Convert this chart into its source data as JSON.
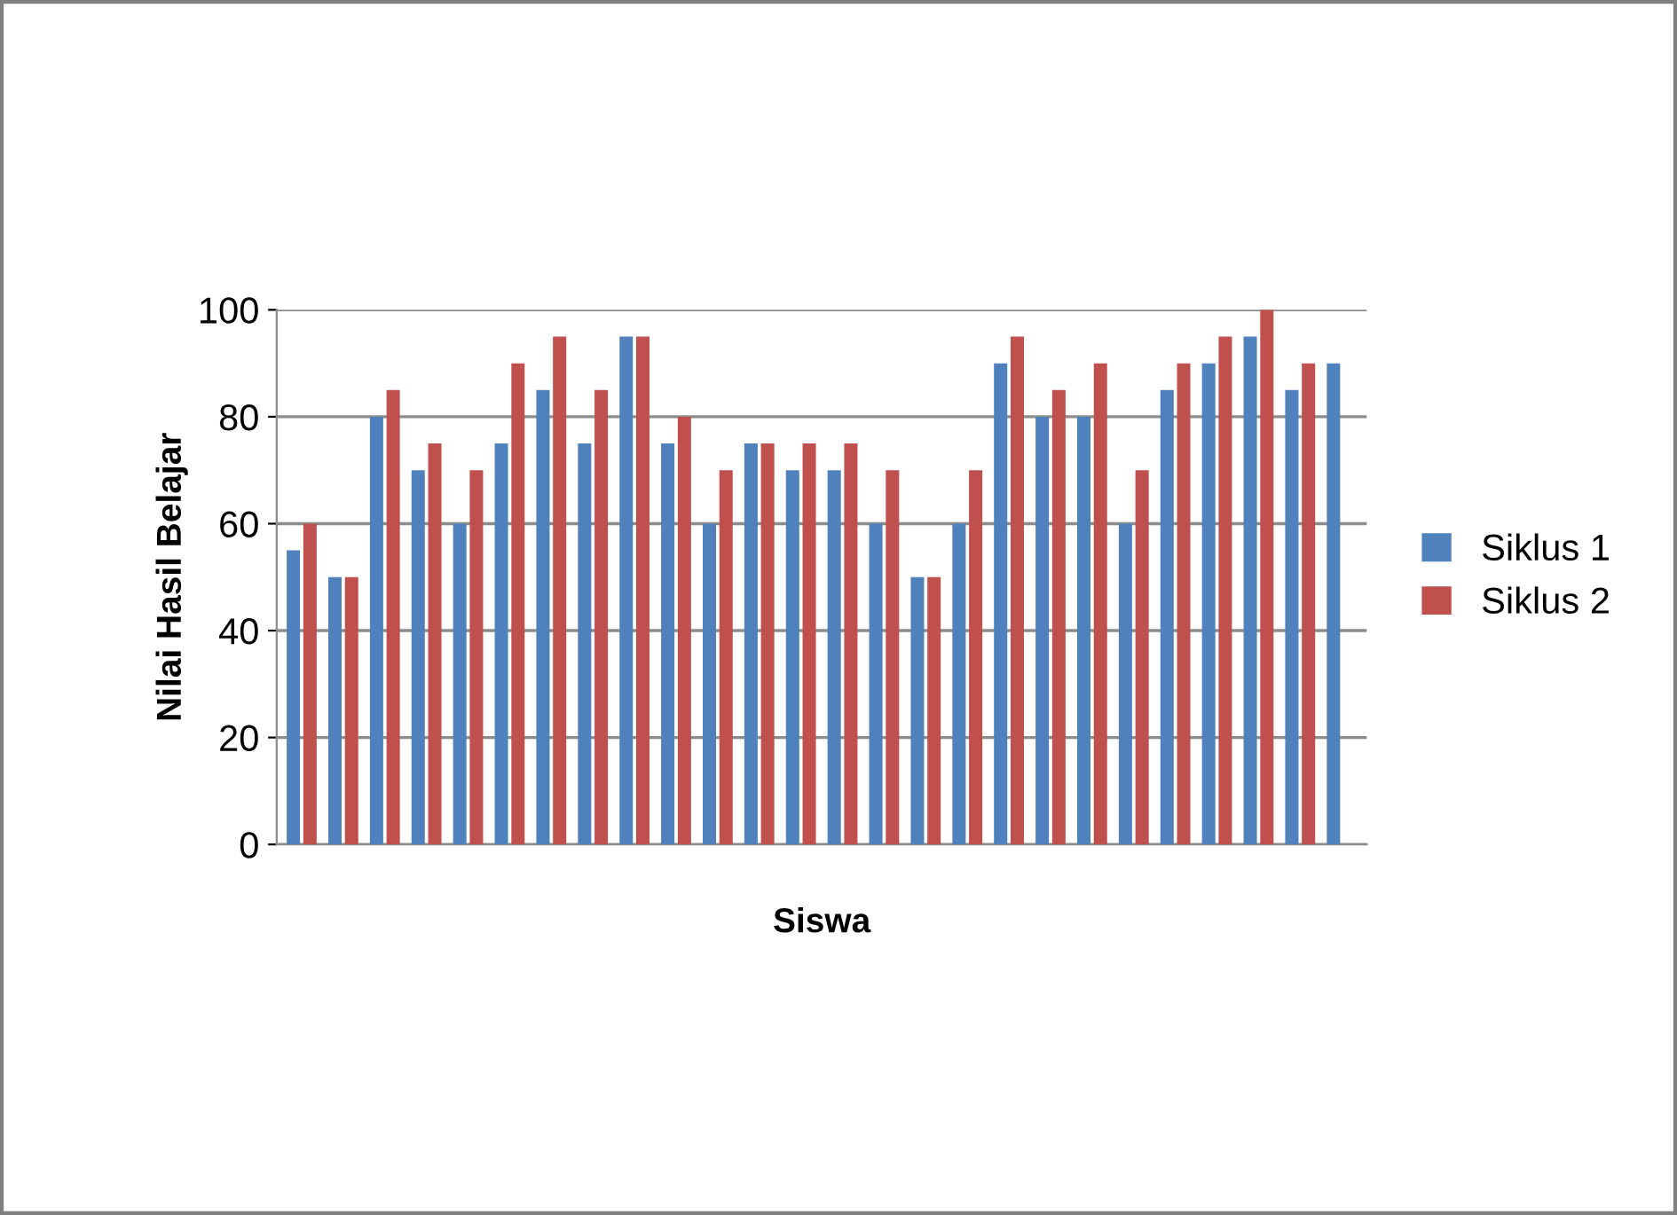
{
  "chart_data": {
    "type": "bar",
    "xlabel": "Siswa",
    "ylabel": "Nilai Hasil Belajar",
    "categories": [
      null,
      null,
      null,
      null,
      null,
      null,
      null,
      null,
      null,
      null,
      null,
      null,
      null,
      null,
      null,
      null,
      null,
      null,
      null,
      null,
      null,
      null,
      null,
      null,
      null,
      null
    ],
    "series": [
      {
        "name": "Siklus 1",
        "color": "#4f81bd",
        "values": [
          55,
          50,
          80,
          70,
          60,
          75,
          85,
          75,
          95,
          75,
          60,
          75,
          70,
          70,
          60,
          50,
          60,
          90,
          80,
          80,
          60,
          85,
          90,
          95,
          85,
          90
        ]
      },
      {
        "name": "Siklus 2",
        "color": "#c0504d",
        "values": [
          60,
          50,
          85,
          75,
          70,
          90,
          95,
          85,
          95,
          80,
          70,
          75,
          75,
          75,
          70,
          50,
          70,
          95,
          85,
          90,
          70,
          90,
          95,
          100,
          90,
          null
        ]
      }
    ],
    "ylim": [
      0,
      100
    ],
    "yticks": [
      0,
      20,
      40,
      60,
      80,
      100
    ],
    "grid": "y",
    "legend": "right"
  }
}
